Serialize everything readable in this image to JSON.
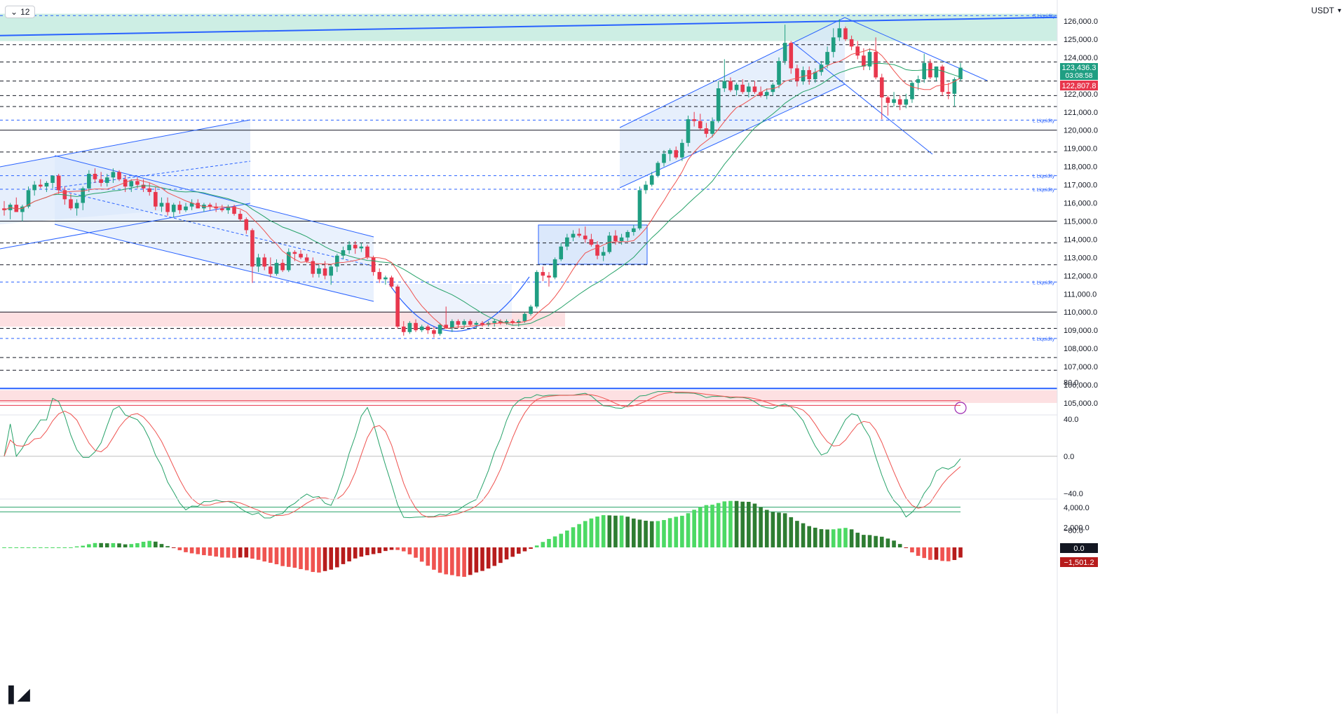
{
  "toolbar": {
    "timeframe": "12",
    "currency": "USDT"
  },
  "colors": {
    "up": "#1f9e82",
    "down": "#e8374d",
    "channel": "#2962ff",
    "channel_fill": "#dbe8fb",
    "supply_zone": "#cdeee4",
    "demand_zone": "#fde0e2",
    "sma": "#26a269",
    "ema": "#ef5350"
  },
  "price_axis": {
    "ticks": [
      "126,000.0",
      "125,000.0",
      "124,000.0",
      "123,000.0",
      "122,000.0",
      "121,000.0",
      "120,000.0",
      "119,000.0",
      "118,000.0",
      "117,000.0",
      "116,000.0",
      "115,000.0",
      "114,000.0",
      "113,000.0",
      "112,000.0",
      "111,000.0",
      "110,000.0",
      "109,000.0",
      "108,000.0",
      "107,000.0",
      "106,000.0",
      "105,000.0"
    ],
    "last_price": "123,436.3",
    "countdown": "03:08:58",
    "ma_price": "122,807.8"
  },
  "liquidity_labels": [
    "S Liquidity",
    "L Liquidity",
    "L Liquidity",
    "L Liquidity",
    "L Liquidity",
    "L Liquidity"
  ],
  "stoch_axis": {
    "ticks": [
      "80.0",
      "40.0",
      "0.0",
      "−40.0",
      "−80.0"
    ]
  },
  "macd_axis": {
    "ticks": [
      "4,000.0",
      "2,000.0"
    ],
    "badge_zero": "0.0",
    "badge_value": "−1,501.2"
  },
  "chart_data": {
    "type": "candlestick",
    "ylim": [
      104800,
      126400
    ],
    "horizontal_levels": [
      124700,
      123750,
      122700,
      121900,
      121300,
      120000,
      118800,
      115000,
      113800,
      112600,
      110000,
      109100,
      107500,
      106800
    ],
    "liquidity_levels": [
      126300,
      120550,
      117500,
      116750,
      111650,
      108550
    ],
    "candles": [
      [
        115700,
        116100,
        115300,
        115600
      ],
      [
        115600,
        116000,
        115100,
        115900
      ],
      [
        115900,
        116300,
        115500,
        115500
      ],
      [
        115500,
        115900,
        115000,
        115800
      ],
      [
        115800,
        116900,
        115700,
        116700
      ],
      [
        116700,
        117200,
        116400,
        117000
      ],
      [
        117000,
        117300,
        116800,
        116900
      ],
      [
        116900,
        117200,
        116600,
        117100
      ],
      [
        117100,
        117500,
        116800,
        117500
      ],
      [
        117500,
        117600,
        116500,
        116700
      ],
      [
        116700,
        116900,
        115900,
        116200
      ],
      [
        116200,
        116500,
        115600,
        115700
      ],
      [
        115700,
        116200,
        115300,
        116000
      ],
      [
        116000,
        116900,
        115600,
        116800
      ],
      [
        116800,
        117800,
        116600,
        117600
      ],
      [
        117600,
        117900,
        117100,
        117300
      ],
      [
        117300,
        117700,
        116900,
        117100
      ],
      [
        117100,
        117600,
        116900,
        117400
      ],
      [
        117400,
        117900,
        117100,
        117700
      ],
      [
        117700,
        117800,
        117200,
        117300
      ],
      [
        117300,
        117500,
        116600,
        116900
      ],
      [
        116900,
        117300,
        116600,
        117200
      ],
      [
        117200,
        117400,
        116800,
        117000
      ],
      [
        117000,
        117300,
        116600,
        116800
      ],
      [
        116800,
        117100,
        116400,
        116600
      ],
      [
        116600,
        116900,
        115600,
        115800
      ],
      [
        115800,
        116300,
        115500,
        116000
      ],
      [
        116000,
        116300,
        115300,
        115500
      ],
      [
        115500,
        116000,
        115200,
        115900
      ],
      [
        115900,
        116100,
        115400,
        115600
      ],
      [
        115600,
        116000,
        115500,
        115800
      ],
      [
        115800,
        116200,
        115600,
        116000
      ],
      [
        116000,
        116200,
        115700,
        115700
      ],
      [
        115700,
        116000,
        115500,
        115900
      ],
      [
        115900,
        116000,
        115600,
        115800
      ],
      [
        115800,
        116000,
        115500,
        115700
      ],
      [
        115700,
        115900,
        115500,
        115600
      ],
      [
        115600,
        115900,
        115400,
        115800
      ],
      [
        115800,
        115900,
        115300,
        115400
      ],
      [
        115400,
        115600,
        115000,
        115100
      ],
      [
        115100,
        115200,
        114300,
        114500
      ],
      [
        114500,
        114600,
        111600,
        112500
      ],
      [
        112500,
        113200,
        112200,
        113000
      ],
      [
        113000,
        113200,
        112300,
        112500
      ],
      [
        112500,
        113000,
        111900,
        112100
      ],
      [
        112100,
        112900,
        112000,
        112700
      ],
      [
        112700,
        112900,
        112200,
        112300
      ],
      [
        112300,
        113500,
        112200,
        113300
      ],
      [
        113300,
        113400,
        112800,
        113200
      ],
      [
        113200,
        113400,
        112900,
        113000
      ],
      [
        113000,
        113200,
        112700,
        112800
      ],
      [
        112800,
        113000,
        111900,
        112100
      ],
      [
        112100,
        112600,
        111900,
        112400
      ],
      [
        112400,
        112800,
        111800,
        112000
      ],
      [
        112000,
        112600,
        111500,
        112500
      ],
      [
        112500,
        113200,
        112200,
        113100
      ],
      [
        113100,
        113600,
        112900,
        113400
      ],
      [
        113400,
        113900,
        113200,
        113700
      ],
      [
        113700,
        113900,
        113200,
        113500
      ],
      [
        113500,
        113800,
        113300,
        113600
      ],
      [
        113600,
        113700,
        112900,
        113000
      ],
      [
        113000,
        113100,
        112000,
        112200
      ],
      [
        112200,
        112400,
        111600,
        111800
      ],
      [
        111800,
        112000,
        111500,
        111900
      ],
      [
        111900,
        112000,
        111300,
        111400
      ],
      [
        111400,
        111500,
        109100,
        109200
      ],
      [
        109200,
        109500,
        108700,
        108900
      ],
      [
        108900,
        109500,
        108800,
        109400
      ],
      [
        109400,
        109600,
        108900,
        109000
      ],
      [
        109000,
        109300,
        108900,
        109200
      ],
      [
        109200,
        109300,
        108800,
        109000
      ],
      [
        109000,
        109200,
        108600,
        108800
      ],
      [
        108800,
        109400,
        108700,
        109300
      ],
      [
        109300,
        110300,
        109100,
        109100
      ],
      [
        109100,
        109600,
        108900,
        109500
      ],
      [
        109500,
        109600,
        109100,
        109300
      ],
      [
        109300,
        109600,
        109100,
        109500
      ],
      [
        109500,
        109600,
        109200,
        109300
      ],
      [
        109300,
        109500,
        109100,
        109400
      ],
      [
        109400,
        109500,
        109200,
        109300
      ],
      [
        109300,
        109500,
        109200,
        109400
      ],
      [
        109400,
        109600,
        109200,
        109500
      ],
      [
        109500,
        109600,
        109300,
        109400
      ],
      [
        109400,
        109600,
        109300,
        109500
      ],
      [
        109500,
        109600,
        109300,
        109400
      ],
      [
        109400,
        109600,
        109200,
        109500
      ],
      [
        109500,
        110000,
        109400,
        109900
      ],
      [
        109900,
        110400,
        109800,
        110300
      ],
      [
        110300,
        112300,
        110200,
        112200
      ],
      [
        112200,
        112500,
        111700,
        112000
      ],
      [
        112000,
        112200,
        111400,
        111900
      ],
      [
        111900,
        113000,
        111800,
        112900
      ],
      [
        112900,
        113800,
        112800,
        113600
      ],
      [
        113600,
        114300,
        113400,
        114100
      ],
      [
        114100,
        114500,
        113900,
        114300
      ],
      [
        114300,
        114600,
        114100,
        114200
      ],
      [
        114200,
        114700,
        113800,
        114000
      ],
      [
        114000,
        114300,
        113600,
        113700
      ],
      [
        113700,
        113900,
        112900,
        113100
      ],
      [
        113100,
        113600,
        112800,
        113300
      ],
      [
        113300,
        114400,
        113200,
        114200
      ],
      [
        114200,
        114500,
        113700,
        113900
      ],
      [
        113900,
        114300,
        113700,
        114100
      ],
      [
        114100,
        114500,
        113900,
        114400
      ],
      [
        114400,
        114800,
        114200,
        114600
      ],
      [
        114600,
        116900,
        114500,
        116700
      ],
      [
        116700,
        117200,
        116500,
        117000
      ],
      [
        117000,
        117700,
        116900,
        117500
      ],
      [
        117500,
        118300,
        117400,
        118200
      ],
      [
        118200,
        118900,
        118000,
        118700
      ],
      [
        118700,
        119000,
        118300,
        118900
      ],
      [
        118900,
        119100,
        118400,
        118500
      ],
      [
        118500,
        119500,
        118300,
        119300
      ],
      [
        119300,
        120800,
        119100,
        120600
      ],
      [
        120600,
        121000,
        120200,
        120500
      ],
      [
        120500,
        120900,
        120000,
        120100
      ],
      [
        120100,
        120400,
        119600,
        119800
      ],
      [
        119800,
        120700,
        119600,
        120500
      ],
      [
        120500,
        122700,
        120400,
        122300
      ],
      [
        122300,
        123900,
        122100,
        122700
      ],
      [
        122700,
        122900,
        122100,
        122200
      ],
      [
        122200,
        122600,
        121900,
        122500
      ],
      [
        122500,
        122800,
        122000,
        122100
      ],
      [
        122100,
        122600,
        121800,
        122400
      ],
      [
        122400,
        122700,
        122000,
        122100
      ],
      [
        122100,
        122400,
        121800,
        121900
      ],
      [
        121900,
        122300,
        121700,
        122100
      ],
      [
        122100,
        122600,
        121900,
        122500
      ],
      [
        122500,
        124000,
        122300,
        123800
      ],
      [
        123800,
        125800,
        123600,
        124800
      ],
      [
        124800,
        124900,
        123100,
        123400
      ],
      [
        123400,
        123600,
        122400,
        122700
      ],
      [
        122700,
        123500,
        122500,
        123300
      ],
      [
        123300,
        123500,
        122500,
        122800
      ],
      [
        122800,
        123400,
        122600,
        123200
      ],
      [
        123200,
        123800,
        123000,
        123600
      ],
      [
        123600,
        124600,
        123400,
        124300
      ],
      [
        124300,
        125600,
        124000,
        125100
      ],
      [
        125100,
        126100,
        124900,
        125600
      ],
      [
        125600,
        125700,
        124900,
        125000
      ],
      [
        125000,
        125200,
        124400,
        124600
      ],
      [
        124600,
        124900,
        123900,
        124100
      ],
      [
        124100,
        124500,
        123300,
        123500
      ],
      [
        123500,
        124500,
        123300,
        124300
      ],
      [
        124300,
        125100,
        122800,
        122900
      ],
      [
        122900,
        123100,
        120600,
        121800
      ],
      [
        121800,
        121900,
        120800,
        121500
      ],
      [
        121500,
        122100,
        121300,
        121700
      ],
      [
        121700,
        121900,
        121100,
        121400
      ],
      [
        121400,
        122000,
        121200,
        121700
      ],
      [
        121700,
        122700,
        121500,
        122600
      ],
      [
        122600,
        123000,
        122200,
        122800
      ],
      [
        122800,
        124200,
        122600,
        123700
      ],
      [
        123700,
        123900,
        122800,
        122900
      ],
      [
        122900,
        123500,
        122700,
        123500
      ],
      [
        123500,
        123600,
        121900,
        122100
      ],
      [
        122100,
        122600,
        121700,
        122000
      ],
      [
        122000,
        122900,
        121300,
        122800
      ],
      [
        122800,
        123700,
        122700,
        123436
      ]
    ]
  }
}
